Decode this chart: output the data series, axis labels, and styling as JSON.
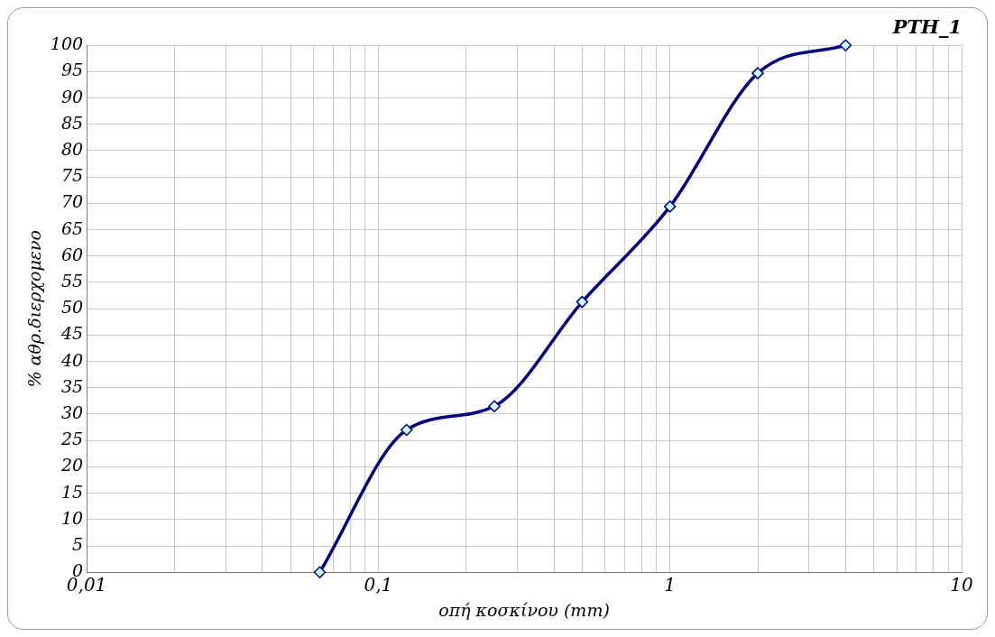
{
  "chart_data": {
    "type": "line",
    "title": "PTH_1",
    "xlabel": "οπή κοσκίνου (mm)",
    "ylabel": "% αθρ.διερχομενο",
    "x": [
      0.063,
      0.125,
      0.25,
      0.5,
      1,
      2,
      4
    ],
    "series": [
      {
        "color": "#000080",
        "values": [
          0,
          27,
          31.5,
          51.3,
          69.4,
          94.7,
          100
        ]
      }
    ],
    "log": "x",
    "xlim": [
      0.01,
      10
    ],
    "ylim": [
      0,
      100
    ],
    "xticks": [
      {
        "value": 0.01,
        "label": "0,01"
      },
      {
        "value": 0.02,
        "label": null
      },
      {
        "value": 0.03,
        "label": null
      },
      {
        "value": 0.04,
        "label": null
      },
      {
        "value": 0.05,
        "label": null
      },
      {
        "value": 0.06,
        "label": null
      },
      {
        "value": 0.07,
        "label": null
      },
      {
        "value": 0.08,
        "label": null
      },
      {
        "value": 0.09,
        "label": null
      },
      {
        "value": 0.1,
        "label": "0,1"
      },
      {
        "value": 0.2,
        "label": null
      },
      {
        "value": 0.3,
        "label": null
      },
      {
        "value": 0.4,
        "label": null
      },
      {
        "value": 0.5,
        "label": null
      },
      {
        "value": 0.6,
        "label": null
      },
      {
        "value": 0.7,
        "label": null
      },
      {
        "value": 0.8,
        "label": null
      },
      {
        "value": 0.9,
        "label": null
      },
      1,
      {
        "value": 2,
        "label": null
      },
      {
        "value": 3,
        "label": null
      },
      {
        "value": 4,
        "label": null
      },
      {
        "value": 5,
        "label": null
      },
      {
        "value": 6,
        "label": null
      },
      {
        "value": 7,
        "label": null
      },
      {
        "value": 8,
        "label": null
      },
      {
        "value": 9,
        "label": null
      },
      10
    ],
    "yticks": [
      0,
      5,
      10,
      15,
      20,
      25,
      30,
      35,
      40,
      45,
      50,
      55,
      60,
      65,
      70,
      75,
      80,
      85,
      90,
      95,
      100
    ],
    "grid": true,
    "legend": false,
    "marker": "diamond",
    "line_style": "solid"
  }
}
